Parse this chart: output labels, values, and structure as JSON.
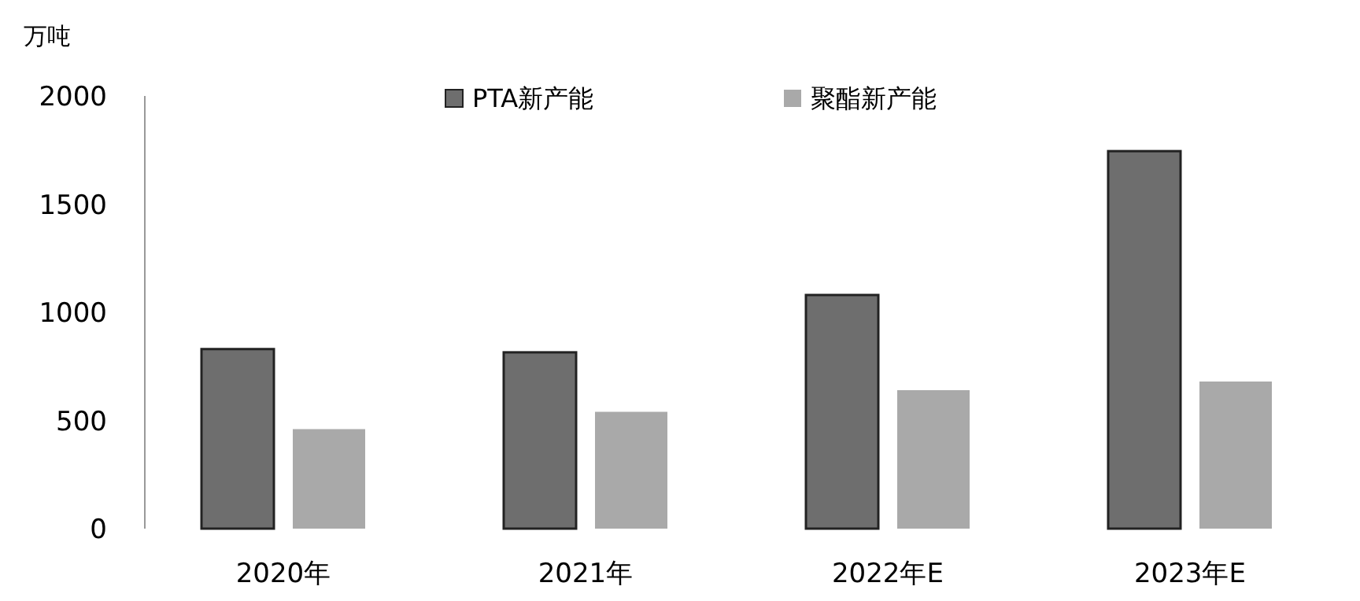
{
  "chart_data": {
    "type": "bar",
    "ylabel": "万吨",
    "categories": [
      "2020年",
      "2021年",
      "2022年E",
      "2023年E"
    ],
    "series": [
      {
        "name": "PTA新产能",
        "color": "#6e6e6e",
        "values": [
          830,
          815,
          1080,
          1745
        ]
      },
      {
        "name": "聚酯新产能",
        "color": "#a9a9a9",
        "values": [
          460,
          540,
          640,
          680
        ]
      }
    ],
    "ylim": [
      0,
      2000
    ],
    "yticks": [
      0,
      500,
      1000,
      1500,
      2000
    ],
    "grid": false,
    "legend": "top"
  }
}
